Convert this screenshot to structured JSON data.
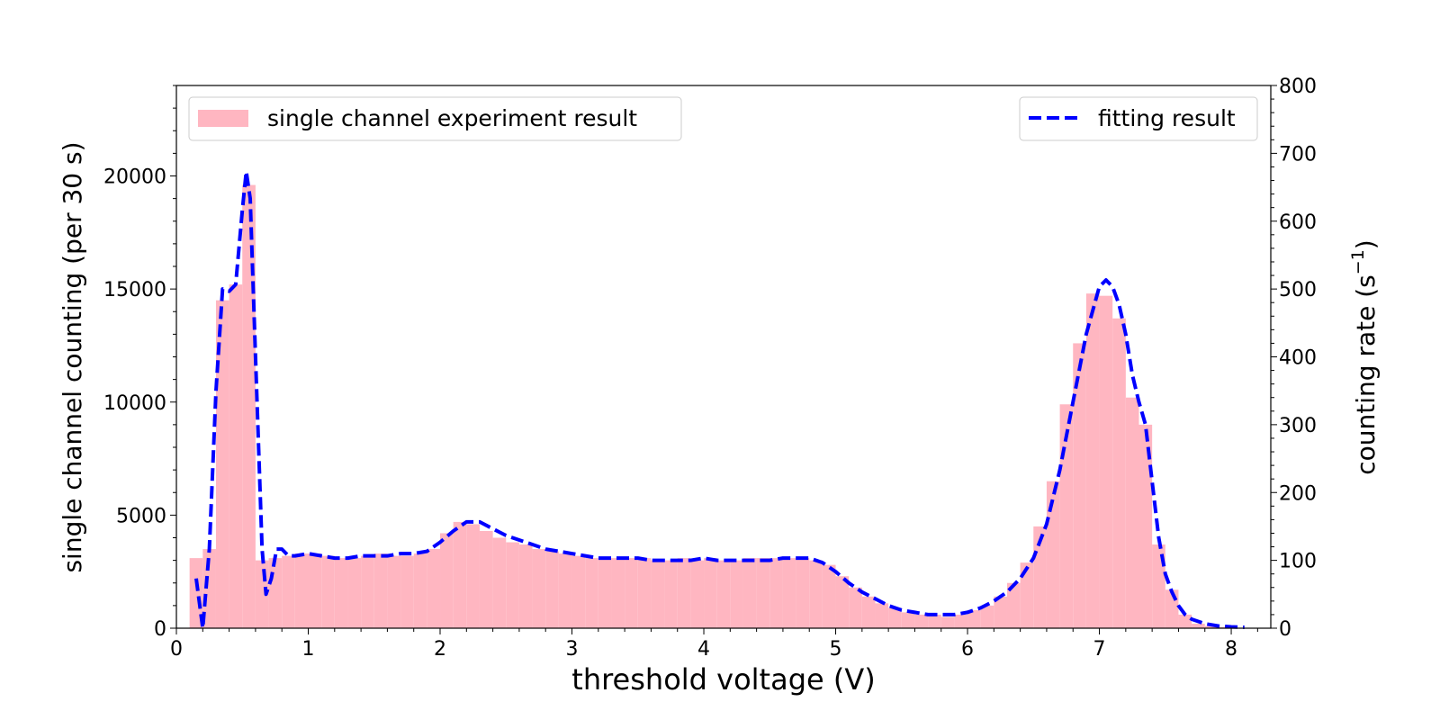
{
  "chart_data": {
    "type": "bar",
    "xlabel": "threshold voltage (V)",
    "ylabel": "single channel counting (per 30 s)",
    "y2label": "counting rate (s",
    "y2label_exponent": "−1",
    "y2label_close": ")",
    "xlim": [
      0,
      8.3
    ],
    "ylim": [
      0,
      24000
    ],
    "y2lim": [
      0,
      800
    ],
    "xticks": [
      0,
      1,
      2,
      3,
      4,
      5,
      6,
      7,
      8
    ],
    "yticks": [
      0,
      5000,
      10000,
      15000,
      20000
    ],
    "y2ticks": [
      0,
      100,
      200,
      300,
      400,
      500,
      600,
      700,
      800
    ],
    "bar_color": "#ffb6c1",
    "line_color": "#0000ff",
    "bar_width": 0.1,
    "legend_left": {
      "label": "single channel experiment result",
      "placement": "upper-left"
    },
    "legend_right": {
      "label": "fitting result",
      "placement": "upper-right"
    },
    "series": [
      {
        "name": "single channel experiment result",
        "type": "bar",
        "x": [
          0.15,
          0.25,
          0.35,
          0.45,
          0.55,
          0.65,
          0.75,
          0.85,
          0.95,
          1.05,
          1.15,
          1.25,
          1.35,
          1.45,
          1.55,
          1.65,
          1.75,
          1.85,
          1.95,
          2.05,
          2.15,
          2.25,
          2.35,
          2.45,
          2.55,
          2.65,
          2.75,
          2.85,
          2.95,
          3.05,
          3.15,
          3.25,
          3.35,
          3.45,
          3.55,
          3.65,
          3.75,
          3.85,
          3.95,
          4.05,
          4.15,
          4.25,
          4.35,
          4.45,
          4.55,
          4.65,
          4.75,
          4.85,
          4.95,
          5.05,
          5.15,
          5.25,
          5.35,
          5.45,
          5.55,
          5.65,
          5.75,
          5.85,
          5.95,
          6.05,
          6.15,
          6.25,
          6.35,
          6.45,
          6.55,
          6.65,
          6.75,
          6.85,
          6.95,
          7.05,
          7.15,
          7.25,
          7.35,
          7.45,
          7.55,
          7.65,
          7.75,
          7.85,
          7.95,
          8.05
        ],
        "values": [
          3100,
          3500,
          14500,
          15200,
          19600,
          3000,
          3100,
          3200,
          3300,
          3300,
          3200,
          3100,
          3100,
          3200,
          3300,
          3200,
          3200,
          3300,
          3500,
          4200,
          4700,
          4600,
          4300,
          4000,
          3800,
          3700,
          3500,
          3400,
          3300,
          3200,
          3100,
          3100,
          3100,
          3100,
          3100,
          3000,
          3000,
          3100,
          3000,
          3100,
          3000,
          3000,
          3100,
          3100,
          3100,
          3100,
          3100,
          3000,
          2800,
          2300,
          1800,
          1400,
          1100,
          900,
          700,
          600,
          600,
          500,
          600,
          800,
          1000,
          1400,
          2000,
          2900,
          4500,
          6500,
          9900,
          12600,
          14800,
          14700,
          13700,
          10200,
          9000,
          3700,
          1700,
          600,
          200,
          100,
          50,
          20
        ]
      },
      {
        "name": "fitting result",
        "type": "line",
        "style": "dashed",
        "x": [
          0.15,
          0.2,
          0.25,
          0.3,
          0.35,
          0.4,
          0.45,
          0.5,
          0.53,
          0.56,
          0.6,
          0.65,
          0.68,
          0.72,
          0.76,
          0.8,
          0.85,
          0.9,
          1.0,
          1.1,
          1.2,
          1.3,
          1.4,
          1.5,
          1.6,
          1.7,
          1.8,
          1.9,
          2.0,
          2.1,
          2.2,
          2.3,
          2.4,
          2.5,
          2.6,
          2.7,
          2.8,
          2.9,
          3.0,
          3.1,
          3.2,
          3.3,
          3.4,
          3.5,
          3.6,
          3.7,
          3.8,
          3.9,
          4.0,
          4.1,
          4.2,
          4.3,
          4.4,
          4.5,
          4.6,
          4.7,
          4.8,
          4.9,
          5.0,
          5.1,
          5.2,
          5.3,
          5.4,
          5.5,
          5.6,
          5.7,
          5.8,
          5.9,
          6.0,
          6.1,
          6.2,
          6.3,
          6.4,
          6.5,
          6.6,
          6.7,
          6.8,
          6.9,
          7.0,
          7.05,
          7.1,
          7.15,
          7.2,
          7.25,
          7.3,
          7.35,
          7.4,
          7.45,
          7.5,
          7.55,
          7.6,
          7.65,
          7.7,
          7.8,
          7.9,
          8.0,
          8.1
        ],
        "values": [
          2200,
          0,
          3500,
          10500,
          15000,
          14900,
          15200,
          18500,
          20200,
          19000,
          12000,
          3500,
          1500,
          2200,
          3500,
          3500,
          3200,
          3200,
          3300,
          3200,
          3100,
          3100,
          3200,
          3200,
          3200,
          3300,
          3300,
          3400,
          3800,
          4300,
          4700,
          4700,
          4400,
          4100,
          3900,
          3700,
          3500,
          3400,
          3300,
          3200,
          3100,
          3100,
          3100,
          3100,
          3000,
          3000,
          3000,
          3000,
          3100,
          3000,
          3000,
          3000,
          3000,
          3000,
          3100,
          3100,
          3100,
          2900,
          2500,
          2000,
          1600,
          1300,
          1000,
          800,
          700,
          600,
          600,
          600,
          700,
          900,
          1200,
          1600,
          2200,
          3100,
          4600,
          7000,
          10000,
          13000,
          15100,
          15400,
          15100,
          14300,
          13000,
          11200,
          10000,
          9000,
          6500,
          4000,
          2400,
          1600,
          1000,
          600,
          400,
          200,
          100,
          60,
          40
        ]
      }
    ]
  }
}
